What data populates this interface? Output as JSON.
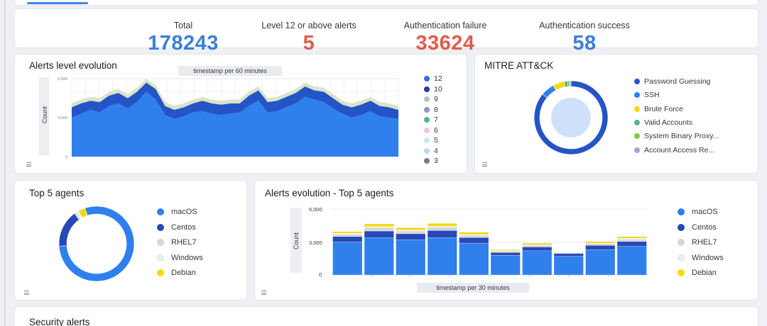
{
  "colors": {
    "blue": "#3b7fd9",
    "red": "#e05c4b",
    "bright_blue": "#2f80ed",
    "dark_blue": "#2554c7",
    "yellow": "#f5d90a",
    "teal": "#54b399",
    "green": "#8bc34a",
    "lavender": "#a9a3d8",
    "pink": "#f4c6d9",
    "gray_dot": "#7b7b7b",
    "light_gray": "#d3d6db"
  },
  "metrics": [
    {
      "label": "Total",
      "value": "178243",
      "color": "#3b7fd9"
    },
    {
      "label": "Level 12 or above alerts",
      "value": "5",
      "color": "#e05c4b"
    },
    {
      "label": "Authentication failure",
      "value": "33624",
      "color": "#e05c4b"
    },
    {
      "label": "Authentication success",
      "value": "58",
      "color": "#3b7fd9"
    }
  ],
  "alerts_level": {
    "title": "Alerts level evolution",
    "interval_label": "timestamp per 60 minutes",
    "ylabel": "Count",
    "legend": [
      {
        "label": "12",
        "color": "#2f6fd6"
      },
      {
        "label": "10",
        "color": "#1f3f9e"
      },
      {
        "label": "9",
        "color": "#b9c0c9"
      },
      {
        "label": "8",
        "color": "#8f93c9"
      },
      {
        "label": "7",
        "color": "#54b399"
      },
      {
        "label": "6",
        "color": "#f4c6d9"
      },
      {
        "label": "5",
        "color": "#cfe3f7"
      },
      {
        "label": "4",
        "color": "#bcd8f0"
      },
      {
        "label": "3",
        "color": "#7b7b7b"
      }
    ]
  },
  "mitre": {
    "title": "MITRE ATT&CK",
    "legend": [
      {
        "label": "Password Guessing",
        "color": "#2554c7"
      },
      {
        "label": "SSH",
        "color": "#2f80ed"
      },
      {
        "label": "Brute Force",
        "color": "#f5d90a"
      },
      {
        "label": "Valid Accounts",
        "color": "#54b399"
      },
      {
        "label": "System Binary Proxy...",
        "color": "#8bc34a"
      },
      {
        "label": "Account Access Re...",
        "color": "#a9a3d8"
      }
    ]
  },
  "top_agents": {
    "title": "Top 5 agents",
    "legend": [
      {
        "label": "macOS",
        "color": "#2f80ed"
      },
      {
        "label": "Centos",
        "color": "#2748b6"
      },
      {
        "label": "RHEL7",
        "color": "#d3d6db"
      },
      {
        "label": "Windows",
        "color": "#eceff3"
      },
      {
        "label": "Debian",
        "color": "#f5d90a"
      }
    ]
  },
  "alerts_top5": {
    "title": "Alerts evolution - Top 5 agents",
    "interval_label": "timestamp per 30 minutes",
    "ylabel": "Count",
    "ticks": [
      "6,000",
      "3,000",
      "0"
    ],
    "legend": [
      {
        "label": "macOS",
        "color": "#2f80ed"
      },
      {
        "label": "Centos",
        "color": "#2748b6"
      },
      {
        "label": "RHEL7",
        "color": "#d3d6db"
      },
      {
        "label": "Windows",
        "color": "#eceff3"
      },
      {
        "label": "Debian",
        "color": "#f5d90a"
      }
    ]
  },
  "security_alerts": {
    "title": "Security alerts"
  },
  "chart_data": [
    {
      "type": "area",
      "title": "Alerts level evolution",
      "ylabel": "Count",
      "ylim": [
        0,
        6000
      ],
      "stacked": true,
      "series": [
        {
          "name": "3",
          "values": [
            3000,
            3300,
            3600,
            3400,
            3900,
            4100,
            3700,
            4200,
            5000,
            4400,
            3200,
            2900,
            3100,
            3400,
            3500,
            3300,
            3200,
            3300,
            3400,
            3900,
            4300,
            3400,
            3500,
            3800,
            4100,
            4600,
            4400,
            4200,
            3700,
            3300,
            3000,
            3200,
            3500,
            3100,
            3000,
            2900
          ]
        },
        {
          "name": "10",
          "values": [
            800,
            800,
            700,
            800,
            800,
            800,
            800,
            800,
            700,
            800,
            700,
            700,
            700,
            700,
            800,
            800,
            800,
            800,
            700,
            800,
            800,
            800,
            800,
            800,
            800,
            800,
            700,
            800,
            800,
            700,
            800,
            800,
            800,
            800,
            800,
            700
          ]
        },
        {
          "name": "4",
          "values": [
            300,
            300,
            300,
            300,
            300,
            300,
            300,
            300,
            300,
            300,
            300,
            300,
            300,
            300,
            300,
            300,
            300,
            300,
            300,
            300,
            300,
            300,
            300,
            300,
            300,
            300,
            300,
            300,
            300,
            300,
            300,
            300,
            300,
            300,
            300,
            300
          ]
        }
      ]
    },
    {
      "type": "pie",
      "title": "MITRE ATT&CK",
      "categories": [
        "Password Guessing",
        "SSH",
        "Brute Force",
        "Valid Accounts",
        "System Binary Proxy...",
        "Account Access Re..."
      ],
      "values": [
        86,
        6,
        5,
        1.5,
        1,
        0.5
      ]
    },
    {
      "type": "pie",
      "title": "Top 5 agents",
      "categories": [
        "macOS",
        "Centos",
        "RHEL7",
        "Windows",
        "Debian"
      ],
      "values": [
        79,
        16,
        1,
        1,
        3
      ]
    },
    {
      "type": "bar",
      "title": "Alerts evolution - Top 5 agents",
      "ylabel": "Count",
      "ylim": [
        0,
        6000
      ],
      "stacked": true,
      "series": [
        {
          "name": "macOS",
          "values": [
            3000,
            3400,
            3200,
            3400,
            2900,
            1800,
            2200,
            1700,
            2300,
            2600
          ]
        },
        {
          "name": "Centos",
          "values": [
            500,
            600,
            550,
            650,
            500,
            250,
            350,
            250,
            400,
            450
          ]
        },
        {
          "name": "RHEL7",
          "values": [
            200,
            300,
            250,
            300,
            200,
            100,
            150,
            100,
            150,
            200
          ]
        },
        {
          "name": "Windows",
          "values": [
            100,
            100,
            100,
            100,
            100,
            50,
            50,
            50,
            50,
            100
          ]
        },
        {
          "name": "Debian",
          "values": [
            150,
            250,
            200,
            250,
            200,
            100,
            150,
            0,
            150,
            150
          ]
        }
      ]
    }
  ]
}
